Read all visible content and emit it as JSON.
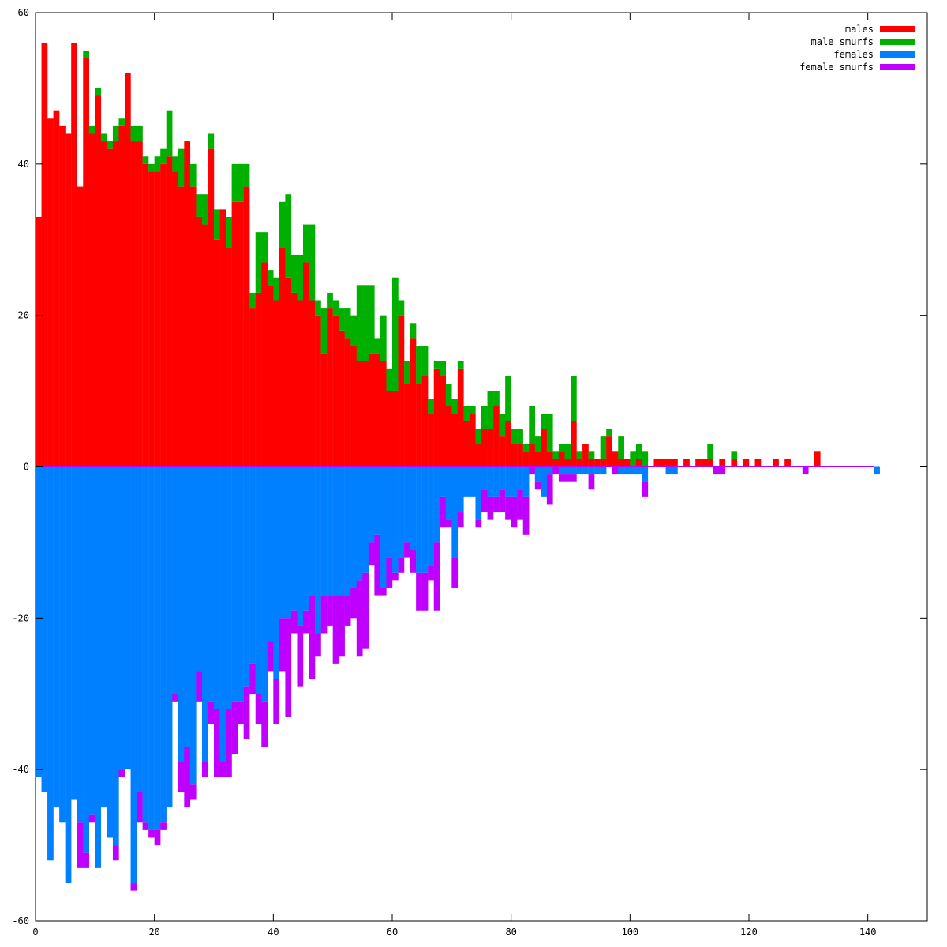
{
  "chart_data": {
    "type": "bar",
    "title": "",
    "xlabel": "",
    "ylabel": "",
    "xlim": [
      0,
      150
    ],
    "ylim": [
      -60,
      60
    ],
    "x_ticks": [
      0,
      20,
      40,
      60,
      80,
      100,
      120,
      140
    ],
    "y_ticks": [
      -60,
      -40,
      -20,
      0,
      20,
      40,
      60
    ],
    "legend": "top-right",
    "grid": false,
    "series": [
      {
        "name": "males",
        "color": "#ff0000"
      },
      {
        "name": "male smurfs",
        "color": "#00b000"
      },
      {
        "name": "females",
        "color": "#0080ff"
      },
      {
        "name": "female smurfs",
        "color": "#c000ff"
      }
    ],
    "males": [
      33,
      56,
      46,
      47,
      45,
      44,
      56,
      37,
      54,
      44,
      49,
      43,
      42,
      43,
      45,
      52,
      43,
      43,
      40,
      39,
      39,
      40,
      41,
      39,
      37,
      43,
      37,
      33,
      32,
      42,
      30,
      34,
      29,
      35,
      35,
      37,
      21,
      23,
      27,
      24,
      22,
      29,
      25,
      23,
      22,
      27,
      22,
      20,
      15,
      21,
      20,
      18,
      17,
      16,
      14,
      14,
      15,
      15,
      14,
      10,
      10,
      20,
      11,
      17,
      11,
      12,
      7,
      13,
      12,
      8,
      7,
      13,
      6,
      7,
      3,
      5,
      5,
      8,
      4,
      6,
      3,
      3,
      2,
      3,
      2,
      5,
      2,
      1,
      2,
      1,
      6,
      1,
      3,
      1,
      1,
      1,
      4,
      2,
      1,
      1,
      0,
      1,
      0,
      0,
      1,
      1,
      1,
      1,
      0,
      1,
      0,
      1,
      1,
      1,
      0,
      1,
      0,
      1,
      0,
      1,
      0,
      1,
      0,
      0,
      1,
      0,
      1,
      0,
      0,
      0,
      0,
      2,
      0,
      0,
      0,
      0,
      0,
      0,
      0,
      0,
      0,
      0
    ],
    "male_smurfs": [
      0,
      0,
      0,
      0,
      0,
      0,
      0,
      0,
      1,
      1,
      1,
      1,
      1,
      2,
      1,
      0,
      2,
      2,
      1,
      1,
      2,
      2,
      6,
      2,
      5,
      0,
      3,
      3,
      4,
      2,
      4,
      0,
      4,
      5,
      5,
      3,
      2,
      8,
      4,
      2,
      3,
      6,
      11,
      5,
      6,
      5,
      10,
      2,
      6,
      2,
      2,
      3,
      4,
      4,
      10,
      10,
      9,
      2,
      6,
      3,
      15,
      2,
      3,
      2,
      5,
      4,
      2,
      1,
      2,
      3,
      2,
      1,
      2,
      1,
      2,
      3,
      5,
      2,
      3,
      6,
      2,
      2,
      1,
      5,
      2,
      2,
      5,
      1,
      1,
      2,
      6,
      1,
      0,
      1,
      0,
      3,
      1,
      0,
      3,
      0,
      2,
      2,
      2,
      0,
      0,
      0,
      0,
      0,
      0,
      0,
      0,
      0,
      0,
      2,
      0,
      0,
      0,
      1,
      0,
      0,
      0,
      0,
      0,
      0,
      0,
      0,
      0,
      0,
      0,
      0,
      0,
      0,
      0,
      0,
      0,
      0,
      0,
      0,
      0,
      0,
      0,
      0
    ],
    "females": [
      41,
      43,
      52,
      45,
      47,
      55,
      44,
      47,
      51,
      46,
      53,
      45,
      49,
      50,
      40,
      40,
      55,
      43,
      47,
      48,
      48,
      47,
      45,
      30,
      39,
      37,
      42,
      27,
      39,
      31,
      32,
      39,
      32,
      31,
      31,
      29,
      26,
      30,
      31,
      23,
      28,
      20,
      20,
      19,
      21,
      19,
      17,
      22,
      17,
      17,
      17,
      17,
      17,
      16,
      15,
      14,
      10,
      9,
      16,
      12,
      14,
      12,
      10,
      11,
      14,
      14,
      13,
      10,
      4,
      7,
      12,
      6,
      4,
      4,
      7,
      3,
      4,
      4,
      3,
      4,
      4,
      3,
      4,
      0,
      2,
      4,
      1,
      0,
      1,
      1,
      1,
      1,
      1,
      1,
      1,
      1,
      0,
      0,
      1,
      1,
      1,
      1,
      2,
      0,
      0,
      0,
      1,
      1,
      0,
      0,
      0,
      0,
      0,
      0,
      0,
      0,
      0,
      0,
      0,
      0,
      0,
      0,
      0,
      0,
      0,
      0,
      0,
      0,
      0,
      0,
      0,
      0,
      0,
      0,
      0,
      0,
      0,
      0,
      0,
      0,
      0,
      1
    ],
    "female_smurfs": [
      0,
      0,
      0,
      0,
      0,
      0,
      0,
      6,
      2,
      1,
      0,
      0,
      0,
      2,
      1,
      0,
      1,
      4,
      1,
      1,
      2,
      1,
      0,
      1,
      4,
      8,
      2,
      4,
      2,
      3,
      9,
      2,
      9,
      7,
      3,
      7,
      4,
      4,
      6,
      4,
      6,
      7,
      13,
      3,
      8,
      3,
      11,
      3,
      5,
      4,
      9,
      8,
      4,
      4,
      10,
      10,
      3,
      8,
      1,
      4,
      1,
      2,
      2,
      3,
      5,
      5,
      2,
      9,
      4,
      1,
      4,
      2,
      0,
      0,
      1,
      3,
      3,
      2,
      3,
      3,
      4,
      4,
      5,
      1,
      1,
      0,
      4,
      1,
      1,
      1,
      1,
      0,
      0,
      2,
      0,
      0,
      0,
      1,
      0,
      0,
      0,
      0,
      2,
      0,
      0,
      0,
      0,
      0,
      0,
      0,
      0,
      0,
      0,
      0,
      1,
      1,
      0,
      0,
      0,
      0,
      0,
      0,
      0,
      0,
      0,
      0,
      0,
      0,
      0,
      1,
      0,
      0,
      0,
      0,
      0,
      0,
      0,
      0,
      0,
      0,
      0,
      0
    ]
  }
}
